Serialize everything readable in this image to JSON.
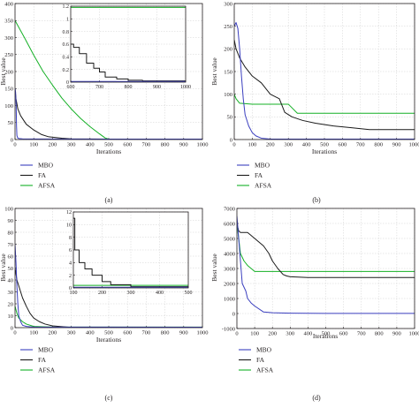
{
  "colors": {
    "MBO": "#3b3fbf",
    "FA": "#1a1a1a",
    "AFSA": "#15b026"
  },
  "chart_data": [
    {
      "panel": "(a)",
      "type": "line",
      "xlabel": "Iterations",
      "ylabel": "Best value",
      "xlim": [
        0,
        1000
      ],
      "ylim": [
        0,
        400
      ],
      "xticks": [
        "0",
        "100",
        "200",
        "300",
        "400",
        "500",
        "600",
        "700",
        "800",
        "900",
        "1000"
      ],
      "yticks": [
        "0",
        "50",
        "100",
        "150",
        "200",
        "250",
        "300",
        "350",
        "400"
      ],
      "legend": [
        "MBO",
        "FA",
        "AFSA"
      ],
      "legend_position": "bottom-left-outside",
      "grid": true,
      "series": [
        {
          "name": "MBO",
          "x": [
            0,
            3,
            6,
            8,
            10,
            14,
            20,
            40,
            100,
            1000
          ],
          "y": [
            150,
            140,
            100,
            40,
            12,
            5,
            3,
            2,
            1.5,
            1.2
          ]
        },
        {
          "name": "FA",
          "x": [
            0,
            5,
            15,
            30,
            60,
            100,
            140,
            180,
            250,
            300,
            400,
            500,
            1000
          ],
          "y": [
            150,
            120,
            90,
            70,
            45,
            28,
            15,
            8,
            4,
            2,
            1.5,
            1.3,
            1.2
          ]
        },
        {
          "name": "AFSA",
          "x": [
            0,
            50,
            100,
            150,
            200,
            250,
            300,
            350,
            400,
            450,
            480,
            500,
            600,
            1000
          ],
          "y": [
            350,
            300,
            248,
            200,
            160,
            122,
            90,
            62,
            38,
            17,
            5,
            1.2,
            1.2,
            1.2
          ]
        }
      ],
      "inset": {
        "xlim": [
          600,
          1000
        ],
        "ylim": [
          0,
          1.2
        ],
        "xticks": [
          "600",
          "700",
          "800",
          "900",
          "1000"
        ],
        "yticks": [
          "0",
          "0.2",
          "0.4",
          "0.6",
          "0.8",
          "1",
          "1.2"
        ],
        "series": [
          {
            "name": "MBO",
            "x": [
              600,
              1000
            ],
            "y": [
              0.01,
              0.01
            ]
          },
          {
            "name": "FA",
            "x": [
              600,
              610,
              610,
              630,
              630,
              655,
              655,
              680,
              680,
              700,
              700,
              720,
              720,
              760,
              760,
              800,
              800,
              850,
              850,
              1000
            ],
            "y": [
              0.6,
              0.6,
              0.55,
              0.55,
              0.45,
              0.45,
              0.3,
              0.3,
              0.22,
              0.22,
              0.16,
              0.16,
              0.08,
              0.08,
              0.05,
              0.05,
              0.03,
              0.03,
              0.02,
              0.02
            ]
          },
          {
            "name": "AFSA",
            "x": [
              600,
              1000
            ],
            "y": [
              1.18,
              1.18
            ]
          }
        ]
      }
    },
    {
      "panel": "(b)",
      "type": "line",
      "xlabel": "Iterations",
      "ylabel": "Best value",
      "xlim": [
        0,
        1000
      ],
      "ylim": [
        0,
        300
      ],
      "xticks": [
        "0",
        "100",
        "200",
        "300",
        "400",
        "500",
        "600",
        "700",
        "800",
        "900",
        "1000"
      ],
      "yticks": [
        "0",
        "50",
        "100",
        "150",
        "200",
        "250",
        "300"
      ],
      "legend": [
        "MBO",
        "FA",
        "AFSA"
      ],
      "legend_position": "bottom-left-outside",
      "grid": true,
      "series": [
        {
          "name": "MBO",
          "x": [
            0,
            10,
            20,
            30,
            40,
            50,
            60,
            80,
            100,
            120,
            150,
            200,
            1000
          ],
          "y": [
            250,
            258,
            245,
            200,
            140,
            90,
            55,
            30,
            15,
            8,
            3,
            1,
            1
          ]
        },
        {
          "name": "FA",
          "x": [
            0,
            10,
            30,
            60,
            100,
            150,
            180,
            200,
            250,
            280,
            320,
            380,
            450,
            550,
            650,
            750,
            1000
          ],
          "y": [
            220,
            200,
            180,
            160,
            140,
            125,
            110,
            100,
            90,
            60,
            50,
            42,
            36,
            30,
            26,
            22,
            22
          ]
        },
        {
          "name": "AFSA",
          "x": [
            0,
            10,
            30,
            100,
            200,
            300,
            350,
            400,
            600,
            1000
          ],
          "y": [
            100,
            90,
            80,
            78,
            78,
            78,
            58,
            58,
            58,
            58
          ]
        }
      ]
    },
    {
      "panel": "(c)",
      "type": "line",
      "xlabel": "Iterations",
      "ylabel": "Best value",
      "xlim": [
        0,
        1000
      ],
      "ylim": [
        0,
        100
      ],
      "xticks": [
        "0",
        "100",
        "200",
        "300",
        "400",
        "500",
        "600",
        "700",
        "800",
        "900",
        "1000"
      ],
      "yticks": [
        "0",
        "10",
        "20",
        "30",
        "40",
        "50",
        "60",
        "70",
        "80",
        "90",
        "100"
      ],
      "legend": [
        "MBO",
        "FA",
        "AFSA"
      ],
      "legend_position": "bottom-left-outside",
      "grid": true,
      "series": [
        {
          "name": "MBO",
          "x": [
            0,
            5,
            10,
            15,
            20,
            30,
            40,
            60,
            100,
            1000
          ],
          "y": [
            70,
            55,
            35,
            20,
            10,
            5,
            2,
            1,
            0.5,
            0.4
          ]
        },
        {
          "name": "FA",
          "x": [
            0,
            10,
            20,
            40,
            60,
            80,
            100,
            130,
            160,
            200,
            250,
            300,
            1000
          ],
          "y": [
            50,
            40,
            35,
            25,
            18,
            12,
            8,
            5,
            3,
            1.5,
            0.8,
            0.2,
            0.2
          ]
        },
        {
          "name": "AFSA",
          "x": [
            0,
            10,
            20,
            40,
            60,
            100,
            200,
            1000
          ],
          "y": [
            18,
            12,
            8,
            5,
            3,
            1,
            0.5,
            0.5
          ]
        }
      ],
      "inset": {
        "xlim": [
          100,
          500
        ],
        "ylim": [
          0,
          12
        ],
        "xticks": [
          "100",
          "200",
          "300",
          "400",
          "500"
        ],
        "yticks": [
          "0",
          "2",
          "4",
          "6",
          "8",
          "10",
          "12"
        ],
        "series": [
          {
            "name": "MBO",
            "x": [
              100,
              500
            ],
            "y": [
              0.1,
              0.1
            ]
          },
          {
            "name": "FA",
            "x": [
              100,
              105,
              105,
              120,
              120,
              140,
              140,
              165,
              165,
              200,
              200,
              230,
              230,
              300,
              300,
              500
            ],
            "y": [
              11,
              11,
              6,
              6,
              4,
              4,
              3,
              3,
              2,
              2,
              1,
              1,
              0.5,
              0.5,
              0.2,
              0.2
            ]
          },
          {
            "name": "AFSA",
            "x": [
              100,
              500
            ],
            "y": [
              0.4,
              0.4
            ]
          }
        ]
      }
    },
    {
      "panel": "(d)",
      "type": "line",
      "xlabel": "Iterations",
      "ylabel": "Best value",
      "xlim": [
        0,
        1000
      ],
      "ylim": [
        -1000,
        7000
      ],
      "xticks": [
        "0",
        "100",
        "200",
        "300",
        "400",
        "500",
        "600",
        "700",
        "800",
        "900",
        "1000"
      ],
      "yticks": [
        "-1000",
        "0",
        "1000",
        "2000",
        "3000",
        "4000",
        "5000",
        "6000",
        "7000"
      ],
      "legend": [
        "MBO",
        "FA",
        "AFSA"
      ],
      "legend_position": "bottom-left-outside",
      "grid": true,
      "series": [
        {
          "name": "MBO",
          "x": [
            0,
            10,
            20,
            30,
            50,
            60,
            80,
            100,
            150,
            200,
            300,
            500,
            1000
          ],
          "y": [
            6500,
            5000,
            3500,
            2000,
            1500,
            1000,
            700,
            500,
            100,
            50,
            20,
            10,
            10
          ]
        },
        {
          "name": "FA",
          "x": [
            0,
            10,
            20,
            60,
            100,
            150,
            180,
            200,
            230,
            260,
            280,
            300,
            400,
            600,
            1000
          ],
          "y": [
            6000,
            5500,
            5400,
            5400,
            5000,
            4500,
            4000,
            3500,
            3000,
            2600,
            2500,
            2450,
            2400,
            2400,
            2400
          ]
        },
        {
          "name": "AFSA",
          "x": [
            0,
            10,
            20,
            40,
            60,
            80,
            100,
            150,
            300,
            1000
          ],
          "y": [
            6000,
            5000,
            4000,
            3500,
            3200,
            3000,
            2800,
            2800,
            2800,
            2800
          ]
        }
      ]
    }
  ]
}
